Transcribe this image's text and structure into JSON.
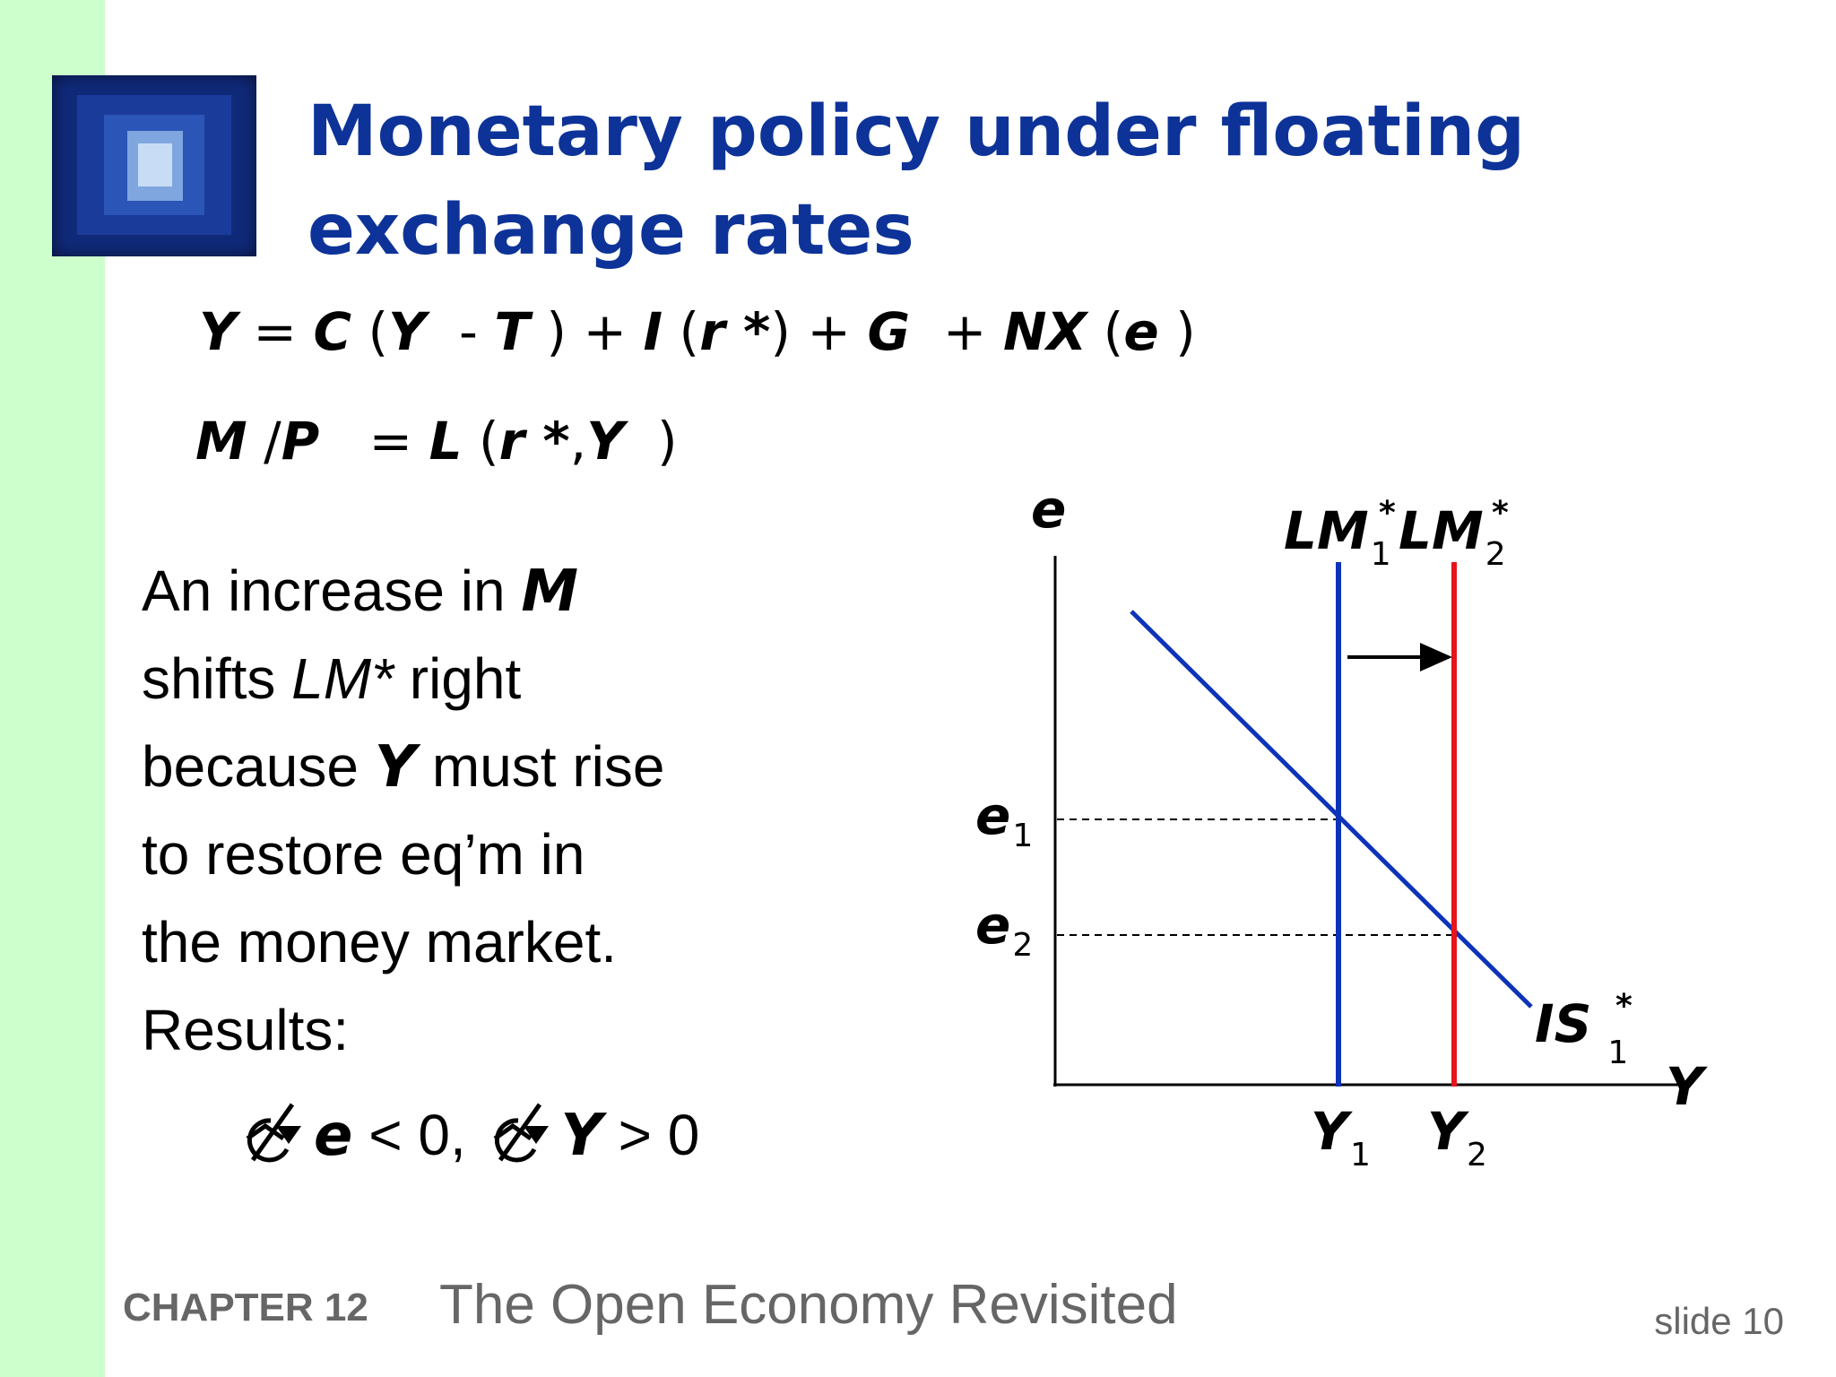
{
  "slide": {
    "title_line1": "Monetary policy under floating",
    "title_line2": "exchange rates",
    "footer": {
      "chapter": "CHAPTER 12",
      "book": "The Open Economy Revisited",
      "slide_number": "slide 10"
    }
  },
  "equations": {
    "eq1": {
      "Y": "Y",
      "eq": " = ",
      "C": "C",
      "p1": " (",
      "Y2": "Y",
      "minus": "  - ",
      "T": "T",
      "p2": " ) + ",
      "I": "I",
      "p3": " (",
      "r": "r",
      "star": " *",
      "p4": ") + ",
      "G": "G",
      "plus": "  + ",
      "NX": "NX",
      "p5": " (",
      "e": "e",
      "p6": " )"
    },
    "eq2": {
      "M": "M",
      "slash": " /",
      "P": "P",
      "eq": "   = ",
      "L": "L",
      "p1": " (",
      "r": "r",
      "star": " *",
      "comma": ",",
      "Y": "Y",
      "p2": "  )"
    }
  },
  "text": {
    "l1a": "An increase in ",
    "l1b": "M",
    "l2a": "shifts ",
    "l2b": "LM*",
    "l2c": " right",
    "l3a": "because ",
    "l3b": "Y",
    "l3c": "  must rise",
    "l4": "to restore eq’m in",
    "l5": "the money market.",
    "l6": "Results:"
  },
  "results": {
    "e": "e",
    "e_rel": " < 0,  ",
    "Y": "Y",
    "Y_rel": "  > 0"
  },
  "graph": {
    "axis_y_label": "e",
    "axis_x_label": "Y",
    "lm1": "LM",
    "lm1_sub": "1",
    "lm1_star": "*",
    "lm2": "LM",
    "lm2_sub": "2",
    "lm2_star": "*",
    "is": "IS",
    "is_sub": "1",
    "is_star": "*",
    "e1": "e",
    "e1_sub": "1",
    "e2": "e",
    "e2_sub": "2",
    "y1": "Y",
    "y1_sub": "1",
    "y2": "Y",
    "y2_sub": "2",
    "colors": {
      "lm1": "#0d33b8",
      "lm2": "#e8141a",
      "is": "#0d33b8",
      "axis": "#000000"
    }
  }
}
